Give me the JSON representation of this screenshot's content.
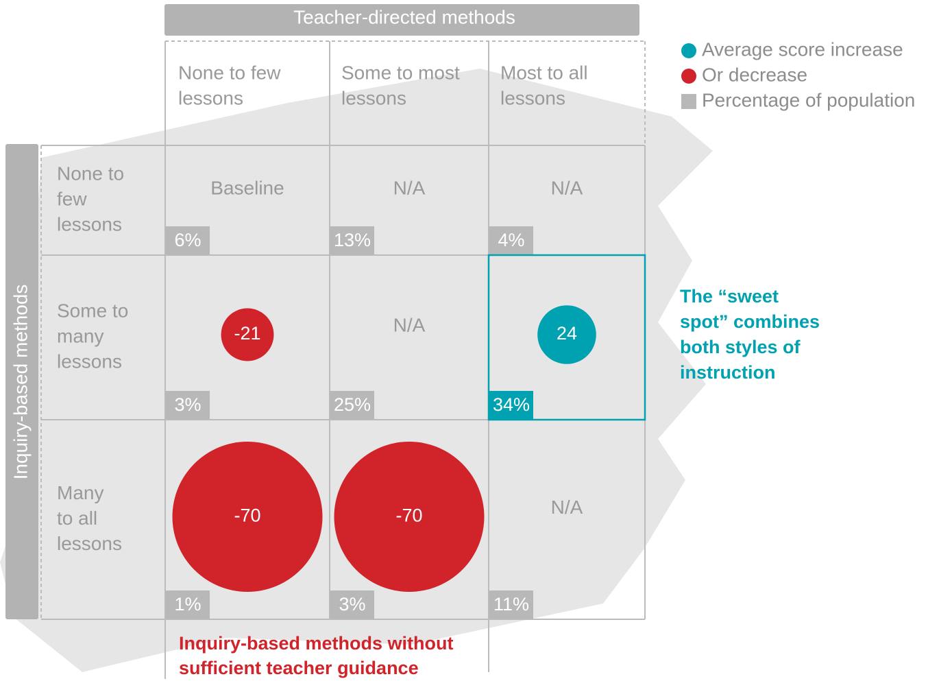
{
  "header": {
    "columns_title": "Teacher-directed methods",
    "rows_title": "Inquiry-based methods"
  },
  "legend": [
    {
      "label": "Average score increase",
      "color": "#00a1b0",
      "shape": "circle"
    },
    {
      "label": "Or decrease",
      "color": "#d0232a",
      "shape": "circle"
    },
    {
      "label": "Percentage of population",
      "color": "#b8b8b8",
      "shape": "square"
    }
  ],
  "columns": [
    [
      "None to few",
      "lessons"
    ],
    [
      "Some to most",
      "lessons"
    ],
    [
      "Most to all",
      "lessons"
    ]
  ],
  "rows": [
    [
      "None to",
      "few",
      "lessons"
    ],
    [
      "Some to",
      "many",
      "lessons"
    ],
    [
      "Many",
      "to all",
      "lessons"
    ]
  ],
  "cells": [
    [
      {
        "score": "Baseline",
        "share": "6%"
      },
      {
        "score": "N/A",
        "share": "13%"
      },
      {
        "score": "N/A",
        "share": "4%"
      }
    ],
    [
      {
        "score": -21,
        "share": "3%"
      },
      {
        "score": "N/A",
        "share": "25%"
      },
      {
        "score": 24,
        "share": "34%",
        "highlight": true
      }
    ],
    [
      {
        "score": -70,
        "share": "1%"
      },
      {
        "score": -70,
        "share": "3%"
      },
      {
        "score": "N/A",
        "share": "11%"
      }
    ]
  ],
  "annotations": {
    "sweet_spot": [
      "The “sweet",
      "spot” combines",
      "both styles of",
      "instruction"
    ],
    "warning": [
      "Inquiry-based methods without",
      "sufficient teacher guidance"
    ]
  }
}
